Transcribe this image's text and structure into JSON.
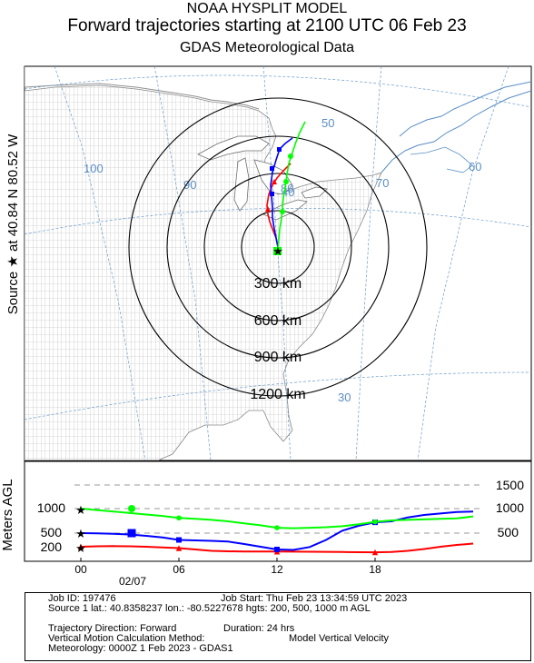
{
  "header": {
    "line1": "NOAA HYSPLIT MODEL",
    "line2": "Forward trajectories starting at 2100 UTC 06 Feb 23",
    "line3": "GDAS Meteorological Data"
  },
  "source_label": "Source ★ at 40.84 N 80.52 W",
  "map": {
    "longitude_labels": [
      "100",
      "90",
      "80",
      "70",
      "60"
    ],
    "latitude_labels": [
      "50",
      "40",
      "30"
    ],
    "range_rings": [
      {
        "label": "300 km"
      },
      {
        "label": "600 km"
      },
      {
        "label": "900 km"
      },
      {
        "label": "1200 km"
      }
    ],
    "colors": {
      "land_borders": "#9a9a9a",
      "graticule": "#6a9ccc",
      "coast": "#5a8ec6"
    }
  },
  "chart_data": {
    "type": "line",
    "title": "",
    "ylabel": "Meters AGL",
    "x_ticks": [
      "00",
      "06",
      "12",
      "18"
    ],
    "x_date_label": "02/07",
    "x_range_hours": [
      0,
      24
    ],
    "y_reference_lines": [
      200,
      500,
      1000,
      1500
    ],
    "y_right_labels": [
      "1500",
      "1000",
      "500"
    ],
    "y_left_labels": [
      "1000",
      "500",
      "200"
    ],
    "series": [
      {
        "color": "#ff0000",
        "marker": "triangle",
        "hours": [
          0,
          1,
          2,
          3,
          4,
          5,
          6,
          7,
          8,
          9,
          10,
          11,
          12,
          13,
          14,
          15,
          16,
          17,
          18,
          19,
          20,
          21,
          22,
          23,
          24
        ],
        "meters": [
          200,
          210,
          215,
          210,
          200,
          185,
          170,
          140,
          110,
          100,
          95,
          95,
          95,
          92,
          90,
          88,
          85,
          80,
          78,
          85,
          110,
          150,
          200,
          240,
          270
        ]
      },
      {
        "color": "#0000ff",
        "marker": "square",
        "hours": [
          0,
          1,
          2,
          3,
          4,
          5,
          6,
          7,
          8,
          9,
          10,
          11,
          12,
          13,
          14,
          15,
          16,
          17,
          18,
          19,
          20,
          21,
          22,
          23,
          24
        ],
        "meters": [
          500,
          495,
          485,
          470,
          440,
          405,
          350,
          340,
          330,
          315,
          260,
          200,
          140,
          130,
          195,
          350,
          550,
          650,
          720,
          740,
          820,
          870,
          900,
          930,
          940
        ]
      },
      {
        "color": "#00ff00",
        "marker": "circle",
        "hours": [
          0,
          1,
          2,
          3,
          4,
          5,
          6,
          7,
          8,
          9,
          10,
          11,
          12,
          13,
          14,
          15,
          16,
          17,
          18,
          19,
          20,
          21,
          22,
          23,
          24
        ],
        "meters": [
          1000,
          970,
          940,
          910,
          880,
          850,
          810,
          790,
          770,
          740,
          700,
          660,
          610,
          600,
          610,
          620,
          640,
          680,
          730,
          760,
          770,
          780,
          790,
          800,
          840
        ]
      }
    ]
  },
  "footer": {
    "job_id": "Job ID: 197476",
    "job_start": "Job Start: Thu Feb 23 13:34:59 UTC 2023",
    "source_latlon": "Source 1 lat.: 40.8358237  lon.: -80.5227678  hgts: 200, 500, 1000 m AGL",
    "direction": "Trajectory Direction: Forward",
    "duration": "Duration: 24 hrs",
    "vertical_motion_label": "Vertical Motion Calculation Method:",
    "vertical_motion_value": "Model Vertical Velocity",
    "meteorology": "Meteorology: 0000Z 1 Feb 2023 - GDAS1"
  }
}
